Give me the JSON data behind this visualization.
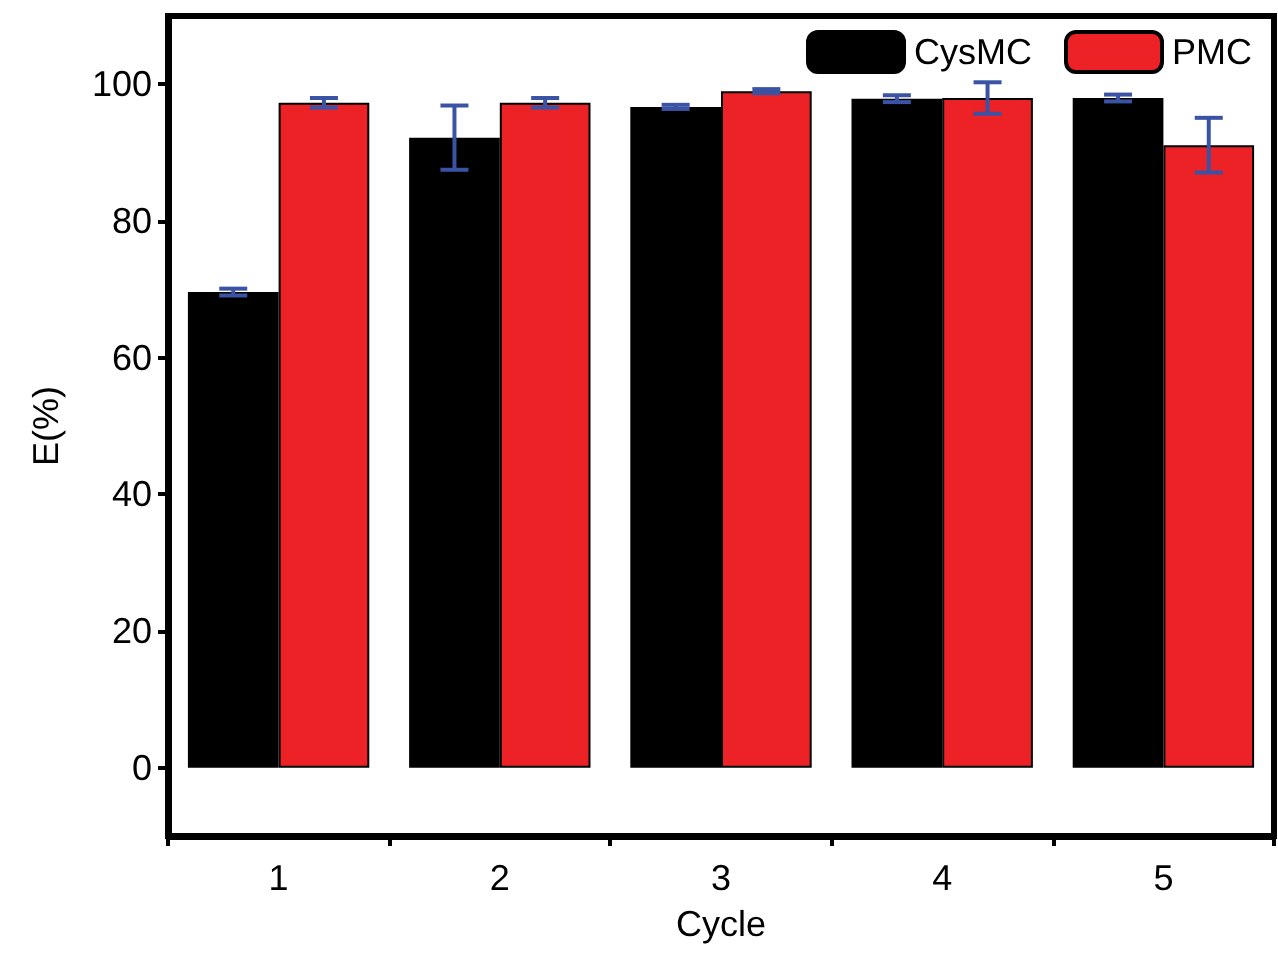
{
  "chart_data": {
    "type": "bar",
    "xlabel": "Cycle",
    "ylabel": "E(%)",
    "categories": [
      "1",
      "2",
      "3",
      "4",
      "5"
    ],
    "series": [
      {
        "name": "CysMC",
        "color": "#000000",
        "values": [
          69.6,
          92.2,
          96.7,
          97.9,
          98.0
        ],
        "errors": [
          0.5,
          4.7,
          0.3,
          0.5,
          0.5
        ]
      },
      {
        "name": "PMC",
        "color": "#ec2227",
        "values": [
          97.3,
          97.3,
          99.0,
          98.0,
          91.1
        ],
        "errors": [
          0.7,
          0.7,
          0.3,
          2.3,
          4.0
        ]
      }
    ],
    "ylim": [
      -10,
      110
    ],
    "yticks": [
      0,
      20,
      40,
      60,
      80,
      100
    ],
    "legend": "top right"
  }
}
